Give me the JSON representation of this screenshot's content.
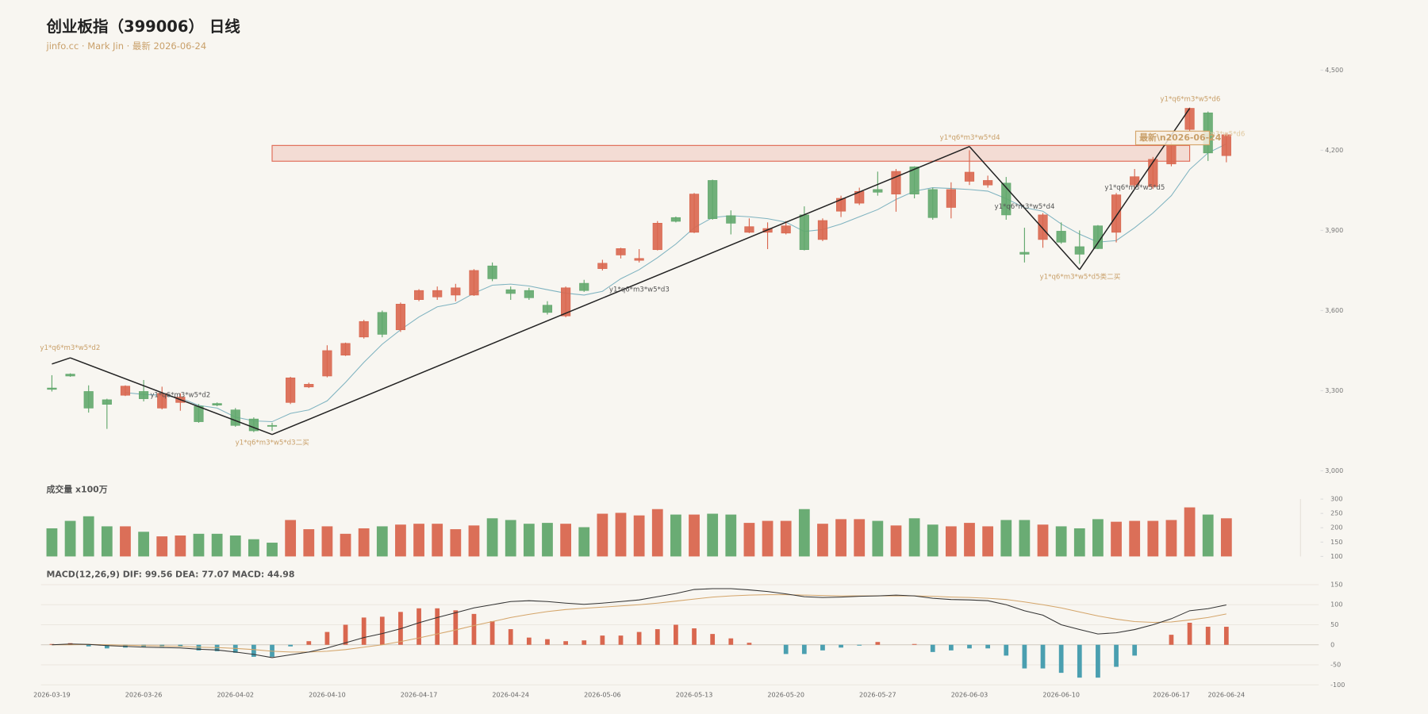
{
  "chart_data": {
    "type": "candlestick",
    "title": "创业板指（399006） 日线",
    "subtitle": "jinfo.cc · Mark Jin · 最新 2026-06-24",
    "categories": [
      "2026-03-19",
      null,
      null,
      null,
      null,
      "2026-03-26",
      null,
      null,
      null,
      null,
      "2026-04-02",
      null,
      null,
      null,
      null,
      "2026-04-10",
      null,
      null,
      null,
      null,
      "2026-04-17",
      null,
      null,
      null,
      null,
      "2026-04-24",
      null,
      null,
      null,
      null,
      "2026-05-06",
      null,
      null,
      null,
      null,
      "2026-05-13",
      null,
      null,
      null,
      null,
      "2026-05-20",
      null,
      null,
      null,
      null,
      "2026-05-27",
      null,
      null,
      null,
      null,
      "2026-06-03",
      null,
      null,
      null,
      null,
      "2026-06-10",
      null,
      null,
      null,
      null,
      null,
      "2026-06-17",
      null,
      null,
      "2026-06-24"
    ],
    "open": [
      3310,
      3362,
      3297,
      3266,
      3283,
      3297,
      3235,
      3256,
      3242,
      3252,
      3228,
      3194,
      3170,
      3256,
      3314,
      3355,
      3433,
      3501,
      3593,
      3528,
      3641,
      3651,
      3658,
      3658,
      3767,
      3678,
      3675,
      3620,
      3580,
      3702,
      3757,
      3808,
      3788,
      3828,
      3948,
      3893,
      4087,
      3955,
      3893,
      3893,
      3890,
      3958,
      3866,
      3972,
      4002,
      4053,
      4036,
      4138,
      4053,
      3986,
      4084,
      4070,
      4077,
      3818,
      3866,
      3897,
      3839,
      3917,
      3893,
      4070,
      4064,
      4149,
      4278,
      4340,
      4180
    ],
    "high": [
      3358,
      3365,
      3320,
      3270,
      3320,
      3340,
      3315,
      3290,
      3250,
      3256,
      3235,
      3200,
      3180,
      3352,
      3330,
      3470,
      3480,
      3565,
      3600,
      3630,
      3680,
      3690,
      3700,
      3755,
      3780,
      3690,
      3685,
      3635,
      3690,
      3715,
      3790,
      3835,
      3830,
      3935,
      3952,
      4040,
      4090,
      3975,
      3945,
      3930,
      3935,
      3990,
      3945,
      4030,
      4060,
      4120,
      4130,
      4140,
      4060,
      4080,
      4200,
      4105,
      4100,
      3910,
      3965,
      3930,
      3900,
      3920,
      4040,
      4130,
      4175,
      4230,
      4360,
      4345,
      4265
    ],
    "low": [
      3297,
      3352,
      3218,
      3157,
      3280,
      3260,
      3230,
      3225,
      3180,
      3242,
      3165,
      3145,
      3150,
      3250,
      3310,
      3350,
      3430,
      3495,
      3500,
      3520,
      3635,
      3640,
      3635,
      3655,
      3710,
      3640,
      3640,
      3585,
      3575,
      3670,
      3750,
      3795,
      3780,
      3825,
      3930,
      3890,
      3940,
      3885,
      3890,
      3830,
      3885,
      3825,
      3860,
      3950,
      3995,
      4030,
      3970,
      4020,
      3940,
      3945,
      4070,
      4060,
      3940,
      3780,
      3835,
      3850,
      3775,
      3830,
      3855,
      4060,
      4055,
      4140,
      4270,
      4160,
      4155
    ],
    "close": [
      3305,
      3355,
      3235,
      3249,
      3317,
      3270,
      3290,
      3276,
      3184,
      3246,
      3170,
      3150,
      3168,
      3348,
      3324,
      3450,
      3477,
      3559,
      3511,
      3624,
      3675,
      3675,
      3685,
      3750,
      3719,
      3664,
      3648,
      3593,
      3685,
      3675,
      3777,
      3832,
      3795,
      3927,
      3934,
      4036,
      3944,
      3927,
      3914,
      3907,
      3917,
      3828,
      3937,
      4020,
      4046,
      4043,
      4121,
      4036,
      3948,
      4053,
      4118,
      4087,
      3958,
      3811,
      3958,
      3856,
      3811,
      3832,
      4033,
      4101,
      4166,
      4221,
      4357,
      4190,
      4258
    ],
    "up_color": "#d9674f",
    "down_color": "#62a86d",
    "ylim": [
      3000,
      4500
    ],
    "yticks": [
      {
        "value": 3000,
        "label": "3,000"
      },
      {
        "value": 3300,
        "label": "3,300"
      },
      {
        "value": 3600,
        "label": "3,600"
      },
      {
        "value": 3900,
        "label": "3,900"
      },
      {
        "value": 4200,
        "label": "4,200"
      },
      {
        "value": 4500,
        "label": "4,500"
      }
    ],
    "ma": {
      "color": "#7fb3c0",
      "values": [
        null,
        null,
        null,
        null,
        3293,
        3286,
        3283,
        3273,
        3245,
        3235,
        3201,
        3187,
        3184,
        3215,
        3228,
        3262,
        3331,
        3406,
        3474,
        3528,
        3576,
        3614,
        3627,
        3665,
        3695,
        3699,
        3692,
        3678,
        3665,
        3658,
        3672,
        3719,
        3753,
        3798,
        3849,
        3910,
        3948,
        3955,
        3951,
        3944,
        3931,
        3896,
        3903,
        3924,
        3951,
        3978,
        4016,
        4047,
        4060,
        4057,
        4053,
        4047,
        4019,
        3985,
        3972,
        3924,
        3886,
        3856,
        3862,
        3910,
        3965,
        4030,
        4128,
        4190,
        4224
      ]
    },
    "zigzag": {
      "color": "#222222",
      "values": [
        3400,
        3423,
        null,
        null,
        null,
        null,
        null,
        null,
        null,
        null,
        null,
        null,
        3136,
        null,
        null,
        null,
        null,
        null,
        null,
        null,
        null,
        null,
        null,
        null,
        null,
        null,
        null,
        null,
        null,
        null,
        null,
        null,
        null,
        null,
        null,
        null,
        null,
        null,
        null,
        null,
        null,
        null,
        null,
        null,
        null,
        null,
        null,
        null,
        null,
        null,
        4214,
        null,
        null,
        null,
        null,
        null,
        3753,
        null,
        null,
        null,
        null,
        null,
        4357,
        null,
        null
      ]
    },
    "zone": {
      "low": 4159,
      "high": 4218,
      "color": "#e06a55"
    },
    "annotations": [
      "y1*q6*m3*w5*d2",
      "y1*q6*m3*w5*d2",
      "y1*q6*m3*w5*d3二买",
      "y1*q6*m3*w5*d3",
      "y1*q6*m3*w5*d4",
      "y1*q6*m3*w5*d4",
      "y1*q6*m3*w5*d5类二买",
      "y1*q6*m3*w5*d5",
      "y1*q6*m3*w5*d6",
      "y1*q6*m3*w5*d6"
    ],
    "latest_label": "最新\\n2026-06-24",
    "volume": {
      "title": "成交量 x100万",
      "values": [
        198,
        224,
        240,
        205,
        205,
        186,
        170,
        173,
        179,
        179,
        173,
        160,
        148,
        227,
        195,
        205,
        179,
        198,
        205,
        211,
        214,
        214,
        195,
        208,
        233,
        227,
        214,
        217,
        214,
        202,
        249,
        252,
        243,
        265,
        246,
        246,
        249,
        246,
        217,
        224,
        224,
        265,
        214,
        230,
        230,
        224,
        208,
        233,
        211,
        205,
        217,
        205,
        227,
        227,
        211,
        205,
        198,
        230,
        221,
        224,
        224,
        227,
        271,
        246,
        233
      ],
      "ylim": [
        100,
        300
      ],
      "yticks": [
        100,
        150,
        200,
        250,
        300
      ]
    },
    "macd": {
      "title": "MACD(12,26,9) DIF: 99.56 DEA: 77.07 MACD: 44.98",
      "hist": {
        "up_color": "#d9674f",
        "down_color": "#4a9fb0",
        "values": [
          2,
          4,
          -4,
          -9,
          -7,
          -5,
          -5,
          -5,
          -14,
          -16,
          -20,
          -30,
          -30,
          -4,
          9,
          32,
          50,
          68,
          70,
          82,
          91,
          91,
          86,
          77,
          59,
          39,
          18,
          14,
          9,
          11,
          23,
          23,
          32,
          39,
          50,
          41,
          27,
          16,
          5,
          0,
          -23,
          -23,
          -14,
          -7,
          -2,
          7,
          0,
          2,
          -18,
          -14,
          -9,
          -9,
          -27,
          -59,
          -59,
          -70,
          -82,
          -82,
          -55,
          -27,
          0,
          25,
          55,
          45,
          44.98
        ]
      },
      "dif": {
        "color": "#333333",
        "values": [
          0,
          2,
          1,
          -2,
          -4,
          -6,
          -7,
          -8,
          -11,
          -13,
          -18,
          -24,
          -32,
          -25,
          -18,
          -8,
          5,
          18,
          28,
          40,
          55,
          68,
          80,
          92,
          100,
          108,
          110,
          108,
          104,
          101,
          104,
          108,
          112,
          120,
          128,
          138,
          140,
          140,
          137,
          133,
          127,
          120,
          118,
          119,
          121,
          122,
          124,
          122,
          116,
          113,
          112,
          110,
          100,
          85,
          74,
          50,
          38,
          27,
          30,
          38,
          50,
          65,
          85,
          90,
          99.56
        ]
      },
      "dea": {
        "color": "#d4a56a",
        "values": [
          0,
          0,
          1,
          0,
          -1,
          -2,
          -3,
          -4,
          -6,
          -7,
          -9,
          -12,
          -16,
          -18,
          -18,
          -16,
          -12,
          -6,
          0,
          8,
          17,
          27,
          37,
          48,
          58,
          68,
          76,
          83,
          88,
          91,
          94,
          97,
          100,
          104,
          109,
          114,
          119,
          122,
          124,
          125,
          125,
          124,
          123,
          122,
          122,
          122,
          122,
          122,
          121,
          119,
          118,
          116,
          113,
          107,
          100,
          92,
          82,
          72,
          64,
          58,
          56,
          57,
          62,
          68,
          77.07
        ]
      },
      "ylim": [
        -100,
        150
      ],
      "yticks": [
        -100,
        -50,
        0,
        50,
        100,
        150
      ],
      "grid": true
    }
  }
}
